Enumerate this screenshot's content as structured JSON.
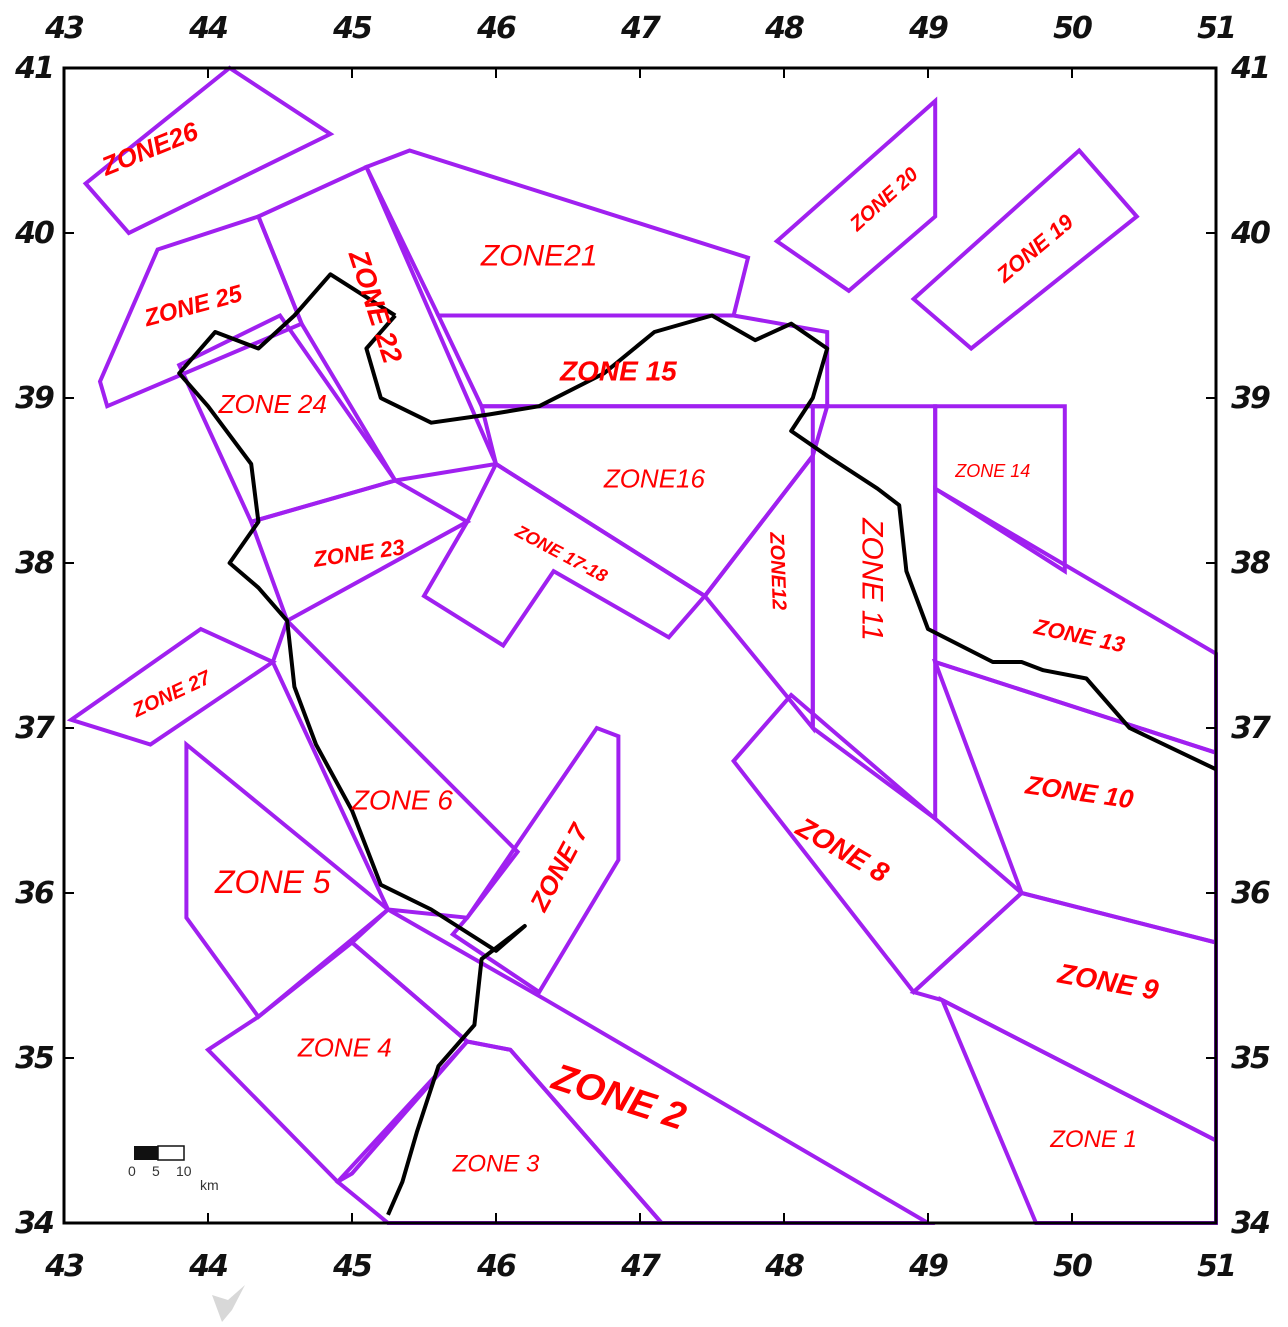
{
  "map": {
    "lon_ticks": [
      "43",
      "44",
      "45",
      "46",
      "47",
      "48",
      "49",
      "50",
      "51"
    ],
    "lat_ticks": [
      "41",
      "40",
      "39",
      "38",
      "37",
      "36",
      "35",
      "34"
    ],
    "lon_range": [
      43,
      51
    ],
    "lat_range": [
      34,
      41
    ],
    "zone_color": "#a020f0",
    "label_color": "#ff0000",
    "border_color": "#000000",
    "zones": [
      {
        "id": "zone26",
        "label": "ZONE26",
        "poly": [
          [
            43.15,
            40.3
          ],
          [
            44.15,
            41
          ],
          [
            44.85,
            40.6
          ],
          [
            43.45,
            40
          ]
        ]
      },
      {
        "id": "zone25",
        "label": "ZONE 25",
        "poly": [
          [
            43.65,
            39.9
          ],
          [
            44.35,
            40.1
          ],
          [
            44.65,
            39.45
          ],
          [
            43.3,
            38.95
          ],
          [
            43.25,
            39.1
          ]
        ]
      },
      {
        "id": "zone24",
        "label": "ZONE 24",
        "poly": [
          [
            43.8,
            39.2
          ],
          [
            44.5,
            39.5
          ],
          [
            45.3,
            38.5
          ],
          [
            44.3,
            38.25
          ]
        ]
      },
      {
        "id": "zone22",
        "label": "ZONE 22",
        "poly": [
          [
            44.35,
            40.1
          ],
          [
            45.1,
            40.4
          ],
          [
            46,
            38.6
          ],
          [
            45.3,
            38.5
          ],
          [
            44.65,
            39.45
          ]
        ]
      },
      {
        "id": "zone21",
        "label": "ZONE21",
        "poly": [
          [
            45.1,
            40.4
          ],
          [
            45.4,
            40.5
          ],
          [
            47.75,
            39.85
          ],
          [
            47.65,
            39.5
          ],
          [
            45.6,
            39.5
          ]
        ]
      },
      {
        "id": "zone15",
        "label": "ZONE 15",
        "poly": [
          [
            45.6,
            39.5
          ],
          [
            47.65,
            39.5
          ],
          [
            48.3,
            39.4
          ],
          [
            48.3,
            38.95
          ],
          [
            45.9,
            38.95
          ]
        ]
      },
      {
        "id": "zone16",
        "label": "ZONE16",
        "poly": [
          [
            45.9,
            38.95
          ],
          [
            48.3,
            38.95
          ],
          [
            48.2,
            38.65
          ],
          [
            47.45,
            37.8
          ],
          [
            46,
            38.6
          ]
        ]
      },
      {
        "id": "zone17",
        "label": "ZONE 17-18",
        "poly": [
          [
            46,
            38.6
          ],
          [
            47.45,
            37.8
          ],
          [
            47.2,
            37.55
          ],
          [
            46.4,
            37.95
          ],
          [
            46.05,
            37.5
          ],
          [
            45.5,
            37.8
          ],
          [
            45.8,
            38.25
          ]
        ]
      },
      {
        "id": "zone23",
        "label": "ZONE 23",
        "poly": [
          [
            44.3,
            38.25
          ],
          [
            45.3,
            38.5
          ],
          [
            45.8,
            38.25
          ],
          [
            44.55,
            37.65
          ]
        ]
      },
      {
        "id": "zone27",
        "label": "ZONE 27",
        "poly": [
          [
            43.05,
            37.05
          ],
          [
            43.95,
            37.6
          ],
          [
            44.45,
            37.4
          ],
          [
            43.6,
            36.9
          ]
        ]
      },
      {
        "id": "zone6",
        "label": "ZONE 6",
        "poly": [
          [
            44.45,
            37.4
          ],
          [
            44.55,
            37.65
          ],
          [
            46.15,
            36.25
          ],
          [
            45.8,
            35.85
          ],
          [
            45.25,
            35.9
          ]
        ]
      },
      {
        "id": "zone7",
        "label": "ZONE 7",
        "poly": [
          [
            45.8,
            35.85
          ],
          [
            46.7,
            37
          ],
          [
            46.85,
            36.95
          ],
          [
            46.85,
            36.2
          ],
          [
            46.3,
            35.4
          ],
          [
            45.7,
            35.75
          ]
        ]
      },
      {
        "id": "zone5",
        "label": "ZONE 5",
        "poly": [
          [
            43.85,
            36.9
          ],
          [
            45.25,
            35.9
          ],
          [
            44.35,
            35.25
          ],
          [
            43.85,
            35.85
          ]
        ]
      },
      {
        "id": "zone4",
        "label": "ZONE 4",
        "poly": [
          [
            44,
            35.05
          ],
          [
            44.35,
            35.25
          ],
          [
            45,
            35.7
          ],
          [
            45.8,
            35.1
          ],
          [
            45,
            34.3
          ],
          [
            44.9,
            34.25
          ]
        ]
      },
      {
        "id": "zone3",
        "label": "ZONE 3",
        "poly": [
          [
            44.9,
            34.25
          ],
          [
            45.8,
            35.1
          ],
          [
            46.1,
            35.05
          ],
          [
            47.15,
            34
          ],
          [
            45.25,
            34
          ]
        ]
      },
      {
        "id": "zone2",
        "label": "ZONE 2",
        "poly": [
          [
            45.25,
            35.9
          ],
          [
            46.35,
            35.35
          ],
          [
            49,
            34
          ],
          [
            47.15,
            34
          ],
          [
            46.1,
            35.05
          ],
          [
            45.8,
            35.1
          ],
          [
            45,
            35.7
          ]
        ]
      },
      {
        "id": "zone12",
        "label": "ZONE12",
        "poly": [
          [
            47.45,
            37.8
          ],
          [
            48.2,
            38.65
          ],
          [
            48.2,
            37
          ]
        ],
        "label_vertical": true
      },
      {
        "id": "zone11",
        "label": "ZONE 11",
        "poly": [
          [
            48.2,
            38.95
          ],
          [
            49.05,
            38.95
          ],
          [
            49.05,
            36.45
          ],
          [
            48.2,
            37
          ]
        ]
      },
      {
        "id": "zone14",
        "label": "ZONE 14",
        "poly": [
          [
            49.05,
            38.95
          ],
          [
            49.95,
            38.95
          ],
          [
            49.95,
            37.95
          ],
          [
            49.05,
            38.45
          ]
        ]
      },
      {
        "id": "zone13",
        "label": "ZONE 13",
        "poly": [
          [
            49.05,
            38.45
          ],
          [
            51,
            37.45
          ],
          [
            51,
            36.85
          ],
          [
            49.05,
            37.4
          ]
        ]
      },
      {
        "id": "zone10",
        "label": "ZONE 10",
        "poly": [
          [
            49.05,
            37.4
          ],
          [
            51,
            36.85
          ],
          [
            51,
            35.7
          ],
          [
            49.65,
            36
          ]
        ]
      },
      {
        "id": "zone8",
        "label": "ZONE 8",
        "poly": [
          [
            47.65,
            36.8
          ],
          [
            48.05,
            37.2
          ],
          [
            49.65,
            36
          ],
          [
            48.9,
            35.4
          ]
        ]
      },
      {
        "id": "zone9",
        "label": "ZONE 9",
        "poly": [
          [
            48.9,
            35.4
          ],
          [
            49.65,
            36
          ],
          [
            51,
            35.7
          ],
          [
            51,
            34.5
          ],
          [
            49.1,
            35.35
          ]
        ]
      },
      {
        "id": "zone1",
        "label": "ZONE 1",
        "poly": [
          [
            49.1,
            35.35
          ],
          [
            51,
            34.5
          ],
          [
            51,
            34
          ],
          [
            49.75,
            34
          ]
        ]
      },
      {
        "id": "zone20",
        "label": "ZONE 20",
        "poly": [
          [
            47.95,
            39.95
          ],
          [
            49.05,
            40.8
          ],
          [
            49.05,
            40.1
          ],
          [
            48.45,
            39.65
          ]
        ]
      },
      {
        "id": "zone19",
        "label": "ZONE 19",
        "poly": [
          [
            48.9,
            39.6
          ],
          [
            49.3,
            39.3
          ],
          [
            50.45,
            40.1
          ],
          [
            50.05,
            40.5
          ]
        ]
      }
    ],
    "zone_labels": [
      {
        "text_ref": "zone26",
        "text": "ZONE26",
        "lon": 43.6,
        "lat": 40.5,
        "size": 26,
        "rot": -22,
        "bold": true
      },
      {
        "text_ref": "zone25",
        "text": "ZONE 25",
        "lon": 43.9,
        "lat": 39.55,
        "size": 24,
        "rot": -15,
        "bold": true
      },
      {
        "text_ref": "zone22",
        "text": "ZONE 22",
        "lon": 45.15,
        "lat": 39.55,
        "size": 28,
        "rot": 72,
        "bold": true
      },
      {
        "text_ref": "zone21",
        "text": "ZONE21",
        "lon": 46.3,
        "lat": 39.85,
        "size": 30,
        "rot": 0,
        "bold": false
      },
      {
        "text_ref": "zone24",
        "text": "ZONE 24",
        "lon": 44.45,
        "lat": 38.95,
        "size": 26,
        "rot": 0,
        "bold": false
      },
      {
        "text_ref": "zone15",
        "text": "ZONE 15",
        "lon": 46.85,
        "lat": 39.15,
        "size": 28,
        "rot": 0,
        "bold": true
      },
      {
        "text_ref": "zone16",
        "text": "ZONE16",
        "lon": 47.1,
        "lat": 38.5,
        "size": 26,
        "rot": 0,
        "bold": false
      },
      {
        "text_ref": "zone17",
        "text": "ZONE 17-18",
        "lon": 46.45,
        "lat": 38.05,
        "size": 18,
        "rot": 28,
        "bold": true
      },
      {
        "text_ref": "zone23",
        "text": "ZONE 23",
        "lon": 45.05,
        "lat": 38.05,
        "size": 22,
        "rot": -8,
        "bold": true
      },
      {
        "text_ref": "zone27",
        "text": "ZONE 27",
        "lon": 43.75,
        "lat": 37.2,
        "size": 20,
        "rot": -25,
        "bold": true
      },
      {
        "text_ref": "zone6",
        "text": "ZONE 6",
        "lon": 45.35,
        "lat": 36.55,
        "size": 28,
        "rot": 0,
        "bold": false
      },
      {
        "text_ref": "zone7",
        "text": "ZONE 7",
        "lon": 46.45,
        "lat": 36.15,
        "size": 26,
        "rot": -62,
        "bold": true
      },
      {
        "text_ref": "zone5",
        "text": "ZONE 5",
        "lon": 44.45,
        "lat": 36.05,
        "size": 32,
        "rot": 0,
        "bold": false
      },
      {
        "text_ref": "zone4",
        "text": "ZONE 4",
        "lon": 44.95,
        "lat": 35.05,
        "size": 26,
        "rot": 0,
        "bold": false
      },
      {
        "text_ref": "zone3",
        "text": "ZONE 3",
        "lon": 46,
        "lat": 34.35,
        "size": 24,
        "rot": 0,
        "bold": false
      },
      {
        "text_ref": "zone2",
        "text": "ZONE 2",
        "lon": 46.85,
        "lat": 34.75,
        "size": 38,
        "rot": 18,
        "bold": true
      },
      {
        "text_ref": "zone12",
        "text": "ZONE12",
        "lon": 47.95,
        "lat": 37.95,
        "size": 20,
        "rot": 88,
        "bold": true
      },
      {
        "text_ref": "zone11",
        "text": "ZONE 11",
        "lon": 48.6,
        "lat": 37.9,
        "size": 30,
        "rot": 90,
        "bold": false
      },
      {
        "text_ref": "zone14",
        "text": "ZONE 14",
        "lon": 49.45,
        "lat": 38.55,
        "size": 18,
        "rot": 0,
        "bold": false
      },
      {
        "text_ref": "zone13",
        "text": "ZONE 13",
        "lon": 50.05,
        "lat": 37.55,
        "size": 22,
        "rot": 12,
        "bold": true
      },
      {
        "text_ref": "zone10",
        "text": "ZONE 10",
        "lon": 50.05,
        "lat": 36.6,
        "size": 26,
        "rot": 8,
        "bold": true
      },
      {
        "text_ref": "zone8",
        "text": "ZONE 8",
        "lon": 48.4,
        "lat": 36.25,
        "size": 28,
        "rot": 30,
        "bold": true
      },
      {
        "text_ref": "zone9",
        "text": "ZONE 9",
        "lon": 50.25,
        "lat": 35.45,
        "size": 28,
        "rot": 10,
        "bold": true
      },
      {
        "text_ref": "zone1",
        "text": "ZONE 1",
        "lon": 50.15,
        "lat": 34.5,
        "size": 24,
        "rot": 0,
        "bold": false
      },
      {
        "text_ref": "zone20",
        "text": "ZONE 20",
        "lon": 48.7,
        "lat": 40.2,
        "size": 20,
        "rot": -42,
        "bold": true
      },
      {
        "text_ref": "zone19",
        "text": "ZONE 19",
        "lon": 49.75,
        "lat": 39.9,
        "size": 22,
        "rot": -40,
        "bold": true
      }
    ],
    "border": [
      [
        45.3,
        39.5
      ],
      [
        45.1,
        39.3
      ],
      [
        45.2,
        39.0
      ],
      [
        45.55,
        38.85
      ],
      [
        45.95,
        38.9
      ],
      [
        46.3,
        38.95
      ],
      [
        46.75,
        39.15
      ],
      [
        47.1,
        39.4
      ],
      [
        47.5,
        39.5
      ],
      [
        47.8,
        39.35
      ],
      [
        48.05,
        39.45
      ],
      [
        48.3,
        39.3
      ],
      [
        48.2,
        39.0
      ],
      [
        48.05,
        38.8
      ],
      [
        48.3,
        38.65
      ],
      [
        48.65,
        38.45
      ],
      [
        48.8,
        38.35
      ],
      [
        48.85,
        37.95
      ],
      [
        49.0,
        37.6
      ],
      [
        49.45,
        37.4
      ],
      [
        49.65,
        37.4
      ],
      [
        49.8,
        37.35
      ],
      [
        50.1,
        37.3
      ],
      [
        50.4,
        37.0
      ],
      [
        51,
        36.75
      ]
    ],
    "border_west": [
      [
        45.3,
        39.5
      ],
      [
        44.85,
        39.75
      ],
      [
        44.6,
        39.5
      ],
      [
        44.35,
        39.3
      ],
      [
        44.05,
        39.4
      ],
      [
        43.8,
        39.15
      ],
      [
        44.0,
        38.95
      ],
      [
        44.3,
        38.6
      ],
      [
        44.35,
        38.25
      ],
      [
        44.15,
        38.0
      ],
      [
        44.35,
        37.85
      ],
      [
        44.55,
        37.65
      ],
      [
        44.6,
        37.25
      ],
      [
        44.75,
        36.9
      ],
      [
        45.0,
        36.5
      ],
      [
        45.2,
        36.05
      ],
      [
        45.55,
        35.9
      ],
      [
        46.0,
        35.65
      ],
      [
        46.2,
        35.8
      ],
      [
        45.9,
        35.6
      ],
      [
        45.85,
        35.2
      ],
      [
        45.6,
        34.95
      ],
      [
        45.45,
        34.55
      ],
      [
        45.35,
        34.25
      ],
      [
        45.25,
        34.05
      ]
    ],
    "scale_bar": {
      "ticks": [
        "0",
        "5",
        "10"
      ],
      "unit": "km"
    }
  }
}
